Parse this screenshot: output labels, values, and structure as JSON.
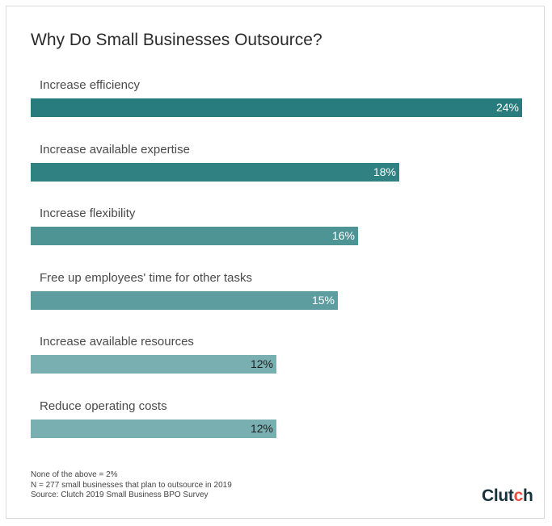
{
  "chart_data": {
    "type": "bar",
    "orientation": "horizontal",
    "title": "Why Do Small Businesses Outsource?",
    "categories": [
      "Increase efficiency",
      "Increase available expertise",
      "Increase flexibility",
      "Free up employees' time for other tasks",
      "Increase available resources",
      "Reduce operating costs"
    ],
    "values": [
      24,
      18,
      16,
      15,
      12,
      12
    ],
    "value_labels": [
      "24%",
      "18%",
      "16%",
      "15%",
      "12%",
      "12%"
    ],
    "bar_colors": [
      "#287c7e",
      "#2f8182",
      "#4f9495",
      "#5d9c9f",
      "#7aafb2",
      "#7aafb2"
    ],
    "label_colors": [
      "#ffffff",
      "#ffffff",
      "#ffffff",
      "#ffffff",
      "#1e1e1e",
      "#1e1e1e"
    ],
    "xlim": [
      0,
      24
    ]
  },
  "footnotes": [
    "None of the above = 2%",
    "N = 277 small businesses that plan to outsource in 2019",
    "Source: Clutch 2019 Small Business BPO Survey"
  ],
  "logo": {
    "text": "Clutch"
  }
}
